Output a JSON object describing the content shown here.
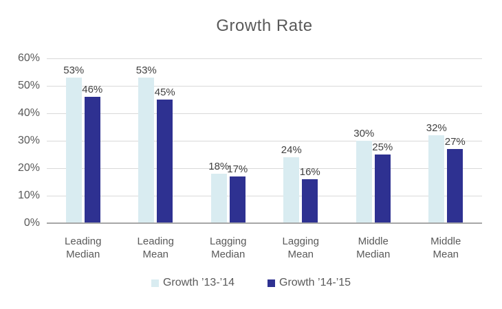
{
  "chart_data": {
    "type": "bar",
    "title": "Growth Rate",
    "categories": [
      "Leading Median",
      "Leading Mean",
      "Lagging Median",
      "Lagging Mean",
      "Middle Median",
      "Middle Mean"
    ],
    "series": [
      {
        "name": "Growth ’13-’14",
        "color": "#d9ecf1",
        "values": [
          53,
          53,
          18,
          24,
          30,
          32
        ]
      },
      {
        "name": "Growth ’14-’15",
        "color": "#2e3191",
        "values": [
          46,
          45,
          17,
          16,
          25,
          27
        ]
      }
    ],
    "value_label_suffix": "%",
    "xlabel": "",
    "ylabel": "",
    "ylim": [
      0,
      60
    ],
    "ytick_step": 10,
    "ytick_labels": [
      "0%",
      "10%",
      "20%",
      "30%",
      "40%",
      "50%",
      "60%"
    ],
    "grid": true,
    "legend_position": "bottom"
  },
  "colors": {
    "background": "#ffffff",
    "title_text": "#595959",
    "axis_text": "#595959",
    "value_label_text": "#404040",
    "gridline": "#d9d9d9",
    "baseline": "#a6a6a6",
    "series1_fill": "#d9ecf1",
    "series2_fill": "#2e3191"
  }
}
